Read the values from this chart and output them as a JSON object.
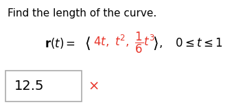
{
  "title": "Find the length of the curve.",
  "answer": "12.5",
  "background_color": "#ffffff",
  "text_color": "#000000",
  "red_color": "#cc0000",
  "pink_red": "#e8352a",
  "title_fontsize": 11,
  "eq_fontsize": 12,
  "answer_fontsize": 14
}
